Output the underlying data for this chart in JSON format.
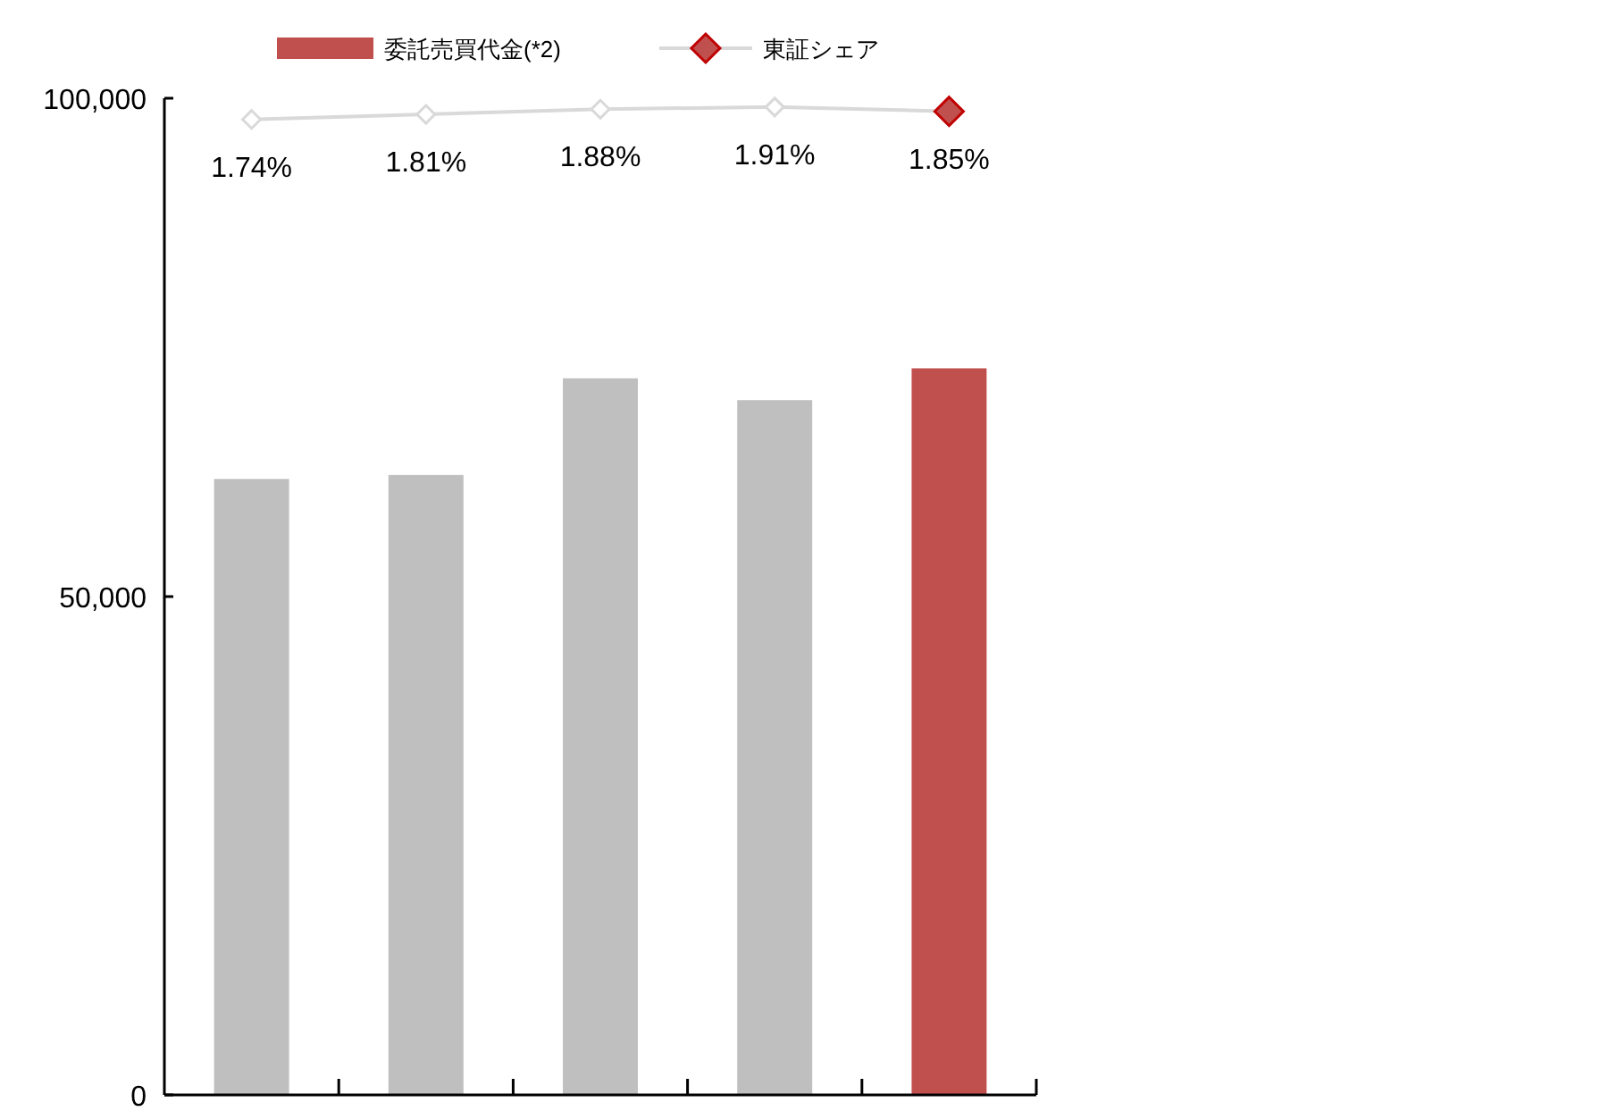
{
  "chart_data": {
    "type": "bar",
    "categories": [
      null,
      null,
      null,
      null,
      null
    ],
    "series": [
      {
        "name": "委託売買代金(*2)",
        "color": "#c0504d",
        "colors": [
          "#bfbfbf",
          "#bfbfbf",
          "#bfbfbf",
          "#bfbfbf",
          "#c0504d"
        ],
        "values": [
          61800,
          62200,
          71900,
          69700,
          72900
        ]
      },
      {
        "name": "東証シェア",
        "type": "line",
        "axis": "y2",
        "color": "#d9d9d9",
        "colors": [
          "#ffffff",
          "#ffffff",
          "#ffffff",
          "#ffffff",
          "#c0504d"
        ],
        "marker": "diamond",
        "values": [
          1.74,
          1.81,
          1.88,
          1.91,
          1.85
        ],
        "value_labels": [
          "1.74%",
          "1.81%",
          "1.88%",
          "1.91%",
          "1.85%"
        ]
      }
    ],
    "ylim": [
      0,
      100000
    ],
    "yticks": [
      {
        "value": 0,
        "label": "0"
      },
      {
        "value": 50000,
        "label": "50,000"
      },
      {
        "value": 100000,
        "label": "100,000"
      }
    ],
    "y2lim": [
      -11.6,
      2.03
    ],
    "tick_labels": "y",
    "grid": false,
    "legend": "top"
  }
}
